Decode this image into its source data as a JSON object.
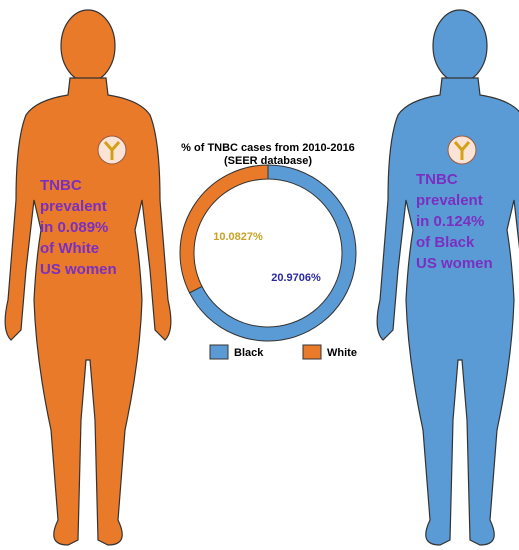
{
  "chart_data": {
    "type": "pie",
    "title": "% of TNBC cases from 2010-2016",
    "subtitle": "(SEER database)",
    "categories": [
      "Black",
      "White"
    ],
    "values": [
      20.9706,
      10.0827
    ],
    "value_labels": [
      "20.9706%",
      "10.0827%"
    ],
    "colors": [
      "#5b9bd5",
      "#e87a2a"
    ],
    "label_colors": [
      "#2b2aa3",
      "#c9a227"
    ],
    "annotations": [
      {
        "lines": [
          "TNBC",
          "prevalent",
          "in 0.089%",
          "of White",
          "US women"
        ],
        "color": "#7b2fc0"
      },
      {
        "lines": [
          "TNBC",
          "prevalent",
          "in 0.124%",
          "of Black",
          "US women"
        ],
        "color": "#7b2fc0"
      }
    ]
  }
}
